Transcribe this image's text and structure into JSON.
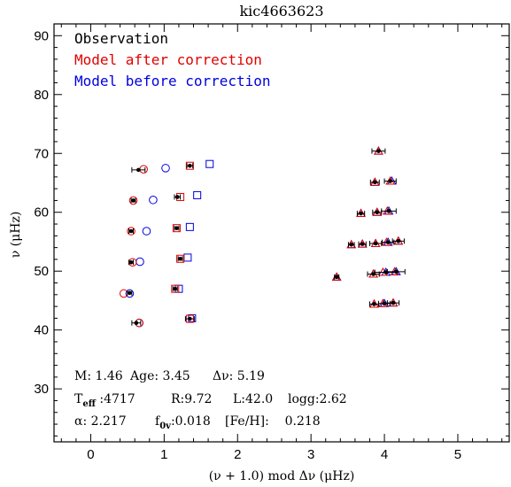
{
  "chart_data": {
    "type": "scatter",
    "title": "kic4663623",
    "xlabel": "(ν + 1.0) mod Δν (μHz)",
    "ylabel": "ν  (μHz)",
    "xlim": [
      -0.5,
      5.7
    ],
    "ylim": [
      21,
      92
    ],
    "x_ticks": [
      "0",
      "1",
      "2",
      "3",
      "4",
      "5"
    ],
    "x_tick_values": [
      0,
      1,
      2,
      3,
      4,
      5
    ],
    "y_ticks": [
      "30",
      "40",
      "50",
      "60",
      "70",
      "80",
      "90"
    ],
    "y_tick_values": [
      30,
      40,
      50,
      60,
      70,
      80,
      90
    ],
    "grid": false,
    "legend_position": "top-left",
    "legend": [
      {
        "label": "Observation",
        "color": "#000000"
      },
      {
        "label": "Model after correction",
        "color": "#e00000"
      },
      {
        "label": "Model before correction",
        "color": "#0000e0"
      }
    ],
    "colors": {
      "observation": "#000000",
      "after": "#e00000",
      "before": "#0000e0"
    },
    "series": [
      {
        "name": "Observation",
        "marker": "dot",
        "points": [
          {
            "x": 0.62,
            "y": 41.2,
            "err": 0.06
          },
          {
            "x": 1.35,
            "y": 41.9,
            "err": 0.06
          },
          {
            "x": 0.53,
            "y": 46.3,
            "err": 0.03
          },
          {
            "x": 1.15,
            "y": 47.0,
            "err": 0.03
          },
          {
            "x": 0.55,
            "y": 51.5,
            "err": 0.03
          },
          {
            "x": 1.22,
            "y": 52.1,
            "err": 0.03
          },
          {
            "x": 0.55,
            "y": 56.8,
            "err": 0.03
          },
          {
            "x": 1.17,
            "y": 57.3,
            "err": 0.03
          },
          {
            "x": 0.58,
            "y": 62.0,
            "err": 0.03
          },
          {
            "x": 1.18,
            "y": 62.6,
            "err": 0.04
          },
          {
            "x": 0.65,
            "y": 67.2,
            "err": 0.09
          },
          {
            "x": 1.35,
            "y": 67.9,
            "err": 0.04
          },
          {
            "x": 3.35,
            "y": 49.0,
            "err": 0.03
          },
          {
            "x": 3.55,
            "y": 54.5,
            "err": 0.04
          },
          {
            "x": 3.7,
            "y": 54.6,
            "err": 0.05
          },
          {
            "x": 3.68,
            "y": 59.8,
            "err": 0.05
          },
          {
            "x": 3.85,
            "y": 49.5,
            "err": 0.08
          },
          {
            "x": 3.88,
            "y": 54.7,
            "err": 0.08
          },
          {
            "x": 3.9,
            "y": 60.0,
            "err": 0.06
          },
          {
            "x": 3.87,
            "y": 65.1,
            "err": 0.06
          },
          {
            "x": 3.92,
            "y": 70.4,
            "err": 0.09
          },
          {
            "x": 3.86,
            "y": 44.4,
            "err": 0.06
          },
          {
            "x": 4.0,
            "y": 44.5,
            "err": 0.08
          },
          {
            "x": 4.02,
            "y": 49.8,
            "err": 0.15
          },
          {
            "x": 4.05,
            "y": 54.9,
            "err": 0.08
          },
          {
            "x": 4.06,
            "y": 60.2,
            "err": 0.1
          },
          {
            "x": 4.08,
            "y": 65.3,
            "err": 0.08
          },
          {
            "x": 4.12,
            "y": 44.6,
            "err": 0.08
          },
          {
            "x": 4.16,
            "y": 49.9,
            "err": 0.12
          },
          {
            "x": 4.19,
            "y": 55.1,
            "err": 0.08
          }
        ]
      },
      {
        "name": "Model after correction",
        "marker": "mixed",
        "points": [
          {
            "x": 0.72,
            "y": 67.3,
            "shape": "circle"
          },
          {
            "x": 0.58,
            "y": 62.0,
            "shape": "circle"
          },
          {
            "x": 0.55,
            "y": 56.8,
            "shape": "circle"
          },
          {
            "x": 0.57,
            "y": 51.5,
            "shape": "circle"
          },
          {
            "x": 0.45,
            "y": 46.2,
            "shape": "circle"
          },
          {
            "x": 0.66,
            "y": 41.2,
            "shape": "circle"
          },
          {
            "x": 1.35,
            "y": 67.9,
            "shape": "square"
          },
          {
            "x": 1.22,
            "y": 62.6,
            "shape": "square"
          },
          {
            "x": 1.17,
            "y": 57.3,
            "shape": "square"
          },
          {
            "x": 1.22,
            "y": 52.1,
            "shape": "square"
          },
          {
            "x": 1.15,
            "y": 47.0,
            "shape": "square"
          },
          {
            "x": 1.35,
            "y": 41.9,
            "shape": "square"
          },
          {
            "x": 3.35,
            "y": 49.0,
            "shape": "triangle"
          },
          {
            "x": 3.55,
            "y": 54.5,
            "shape": "triangle"
          },
          {
            "x": 3.7,
            "y": 54.6,
            "shape": "triangle"
          },
          {
            "x": 3.68,
            "y": 59.8,
            "shape": "triangle"
          },
          {
            "x": 3.85,
            "y": 49.5,
            "shape": "triangle"
          },
          {
            "x": 3.88,
            "y": 54.7,
            "shape": "triangle"
          },
          {
            "x": 3.9,
            "y": 60.0,
            "shape": "triangle"
          },
          {
            "x": 3.87,
            "y": 65.1,
            "shape": "triangle"
          },
          {
            "x": 3.92,
            "y": 70.4,
            "shape": "triangle"
          },
          {
            "x": 3.86,
            "y": 44.4,
            "shape": "triangle"
          },
          {
            "x": 3.98,
            "y": 44.5,
            "shape": "triangle"
          },
          {
            "x": 3.98,
            "y": 49.8,
            "shape": "triangle"
          },
          {
            "x": 4.03,
            "y": 54.9,
            "shape": "triangle"
          },
          {
            "x": 4.04,
            "y": 60.2,
            "shape": "triangle"
          },
          {
            "x": 4.08,
            "y": 65.3,
            "shape": "triangle"
          },
          {
            "x": 4.12,
            "y": 44.6,
            "shape": "triangle"
          },
          {
            "x": 4.14,
            "y": 49.9,
            "shape": "triangle"
          },
          {
            "x": 4.19,
            "y": 55.1,
            "shape": "triangle"
          }
        ]
      },
      {
        "name": "Model before correction",
        "marker": "mixed",
        "points": [
          {
            "x": 1.02,
            "y": 67.5,
            "shape": "circle"
          },
          {
            "x": 0.85,
            "y": 62.1,
            "shape": "circle"
          },
          {
            "x": 0.76,
            "y": 56.8,
            "shape": "circle"
          },
          {
            "x": 0.67,
            "y": 51.6,
            "shape": "circle"
          },
          {
            "x": 0.53,
            "y": 46.2,
            "shape": "circle"
          },
          {
            "x": 0.66,
            "y": 41.2,
            "shape": "circle"
          },
          {
            "x": 1.62,
            "y": 68.2,
            "shape": "square"
          },
          {
            "x": 1.45,
            "y": 62.9,
            "shape": "square"
          },
          {
            "x": 1.35,
            "y": 57.5,
            "shape": "square"
          },
          {
            "x": 1.32,
            "y": 52.3,
            "shape": "square"
          },
          {
            "x": 1.2,
            "y": 47.0,
            "shape": "square"
          },
          {
            "x": 1.38,
            "y": 42.0,
            "shape": "square"
          },
          {
            "x": 3.35,
            "y": 49.0,
            "shape": "triangle"
          },
          {
            "x": 3.55,
            "y": 54.5,
            "shape": "triangle"
          },
          {
            "x": 3.7,
            "y": 54.6,
            "shape": "triangle"
          },
          {
            "x": 3.68,
            "y": 59.8,
            "shape": "triangle"
          },
          {
            "x": 3.85,
            "y": 49.5,
            "shape": "triangle"
          },
          {
            "x": 3.88,
            "y": 54.7,
            "shape": "triangle"
          },
          {
            "x": 3.9,
            "y": 60.0,
            "shape": "triangle"
          },
          {
            "x": 3.87,
            "y": 65.1,
            "shape": "triangle"
          },
          {
            "x": 3.92,
            "y": 70.4,
            "shape": "triangle"
          },
          {
            "x": 3.86,
            "y": 44.4,
            "shape": "triangle"
          },
          {
            "x": 4.0,
            "y": 44.5,
            "shape": "triangle"
          },
          {
            "x": 4.02,
            "y": 49.8,
            "shape": "triangle"
          },
          {
            "x": 4.05,
            "y": 54.9,
            "shape": "triangle"
          },
          {
            "x": 4.06,
            "y": 60.2,
            "shape": "triangle"
          },
          {
            "x": 4.1,
            "y": 65.3,
            "shape": "triangle"
          },
          {
            "x": 4.12,
            "y": 44.6,
            "shape": "triangle"
          },
          {
            "x": 4.16,
            "y": 49.9,
            "shape": "triangle"
          },
          {
            "x": 4.19,
            "y": 55.1,
            "shape": "triangle"
          }
        ]
      }
    ],
    "annotations": {
      "line1": [
        {
          "text": "M: 1.46"
        },
        {
          "text": "Age: 3.45"
        },
        {
          "text": "Δν: 5.19"
        }
      ],
      "line2": [
        {
          "main": "T",
          "sub": "eff",
          "rest": " :4717"
        },
        {
          "main": "R:9.72"
        },
        {
          "main": "L:42.0"
        },
        {
          "main": "logg:2.62"
        }
      ],
      "line3": [
        {
          "main": "α: 2.217"
        },
        {
          "main": "f",
          "sub": "0v",
          "rest": ":0.018"
        },
        {
          "main": "[Fe/H]:    0.218"
        }
      ]
    }
  }
}
